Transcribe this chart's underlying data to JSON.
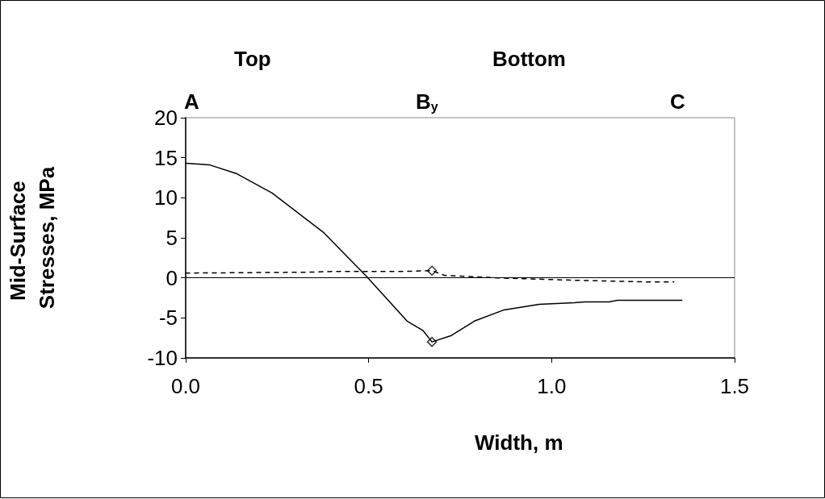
{
  "chart_data": {
    "type": "line",
    "xlabel": "Width, m",
    "ylabel": "Mid-Surface Stresses, MPa",
    "annotations": [
      "Top",
      "Bottom",
      "A",
      "B$_{y}$",
      "C"
    ],
    "series": [
      {
        "color": "#000000",
        "line_style": "solid",
        "marker": "none",
        "x": [
          0,
          0.066,
          0.14,
          0.236,
          0.376,
          0.494,
          0.605,
          0.649,
          0.673,
          0.726,
          0.789,
          0.87,
          0.966,
          1.062,
          1.091,
          1.157,
          1.18,
          1.356
        ],
        "values": [
          14.3,
          14.1,
          13.0,
          10.6,
          5.7,
          0.2,
          -5.4,
          -6.6,
          -8.0,
          -7.2,
          -5.4,
          -4.0,
          -3.3,
          -3.1,
          -3.0,
          -3.0,
          -2.8,
          -2.8
        ]
      },
      {
        "color": "#000000",
        "line_style": "dashed",
        "marker": "none",
        "x": [
          0,
          0.324,
          0.41,
          0.59,
          0.673,
          0.708,
          0.848,
          1.062,
          1.257,
          1.334
        ],
        "values": [
          0.6,
          0.7,
          0.8,
          0.8,
          0.9,
          0.3,
          0.0,
          -0.3,
          -0.5,
          -0.5
        ]
      },
      {
        "type": "scatter",
        "color": "#000000",
        "marker": "diamond",
        "x": [
          0.673,
          0.673
        ],
        "values": [
          -8.0,
          0.9
        ]
      }
    ],
    "xlim": [
      0,
      1.5
    ],
    "xticks": [
      {
        "value": 0,
        "label": "0.0"
      },
      {
        "value": 0.5,
        "label": "0.5"
      },
      {
        "value": 1,
        "label": "1.0"
      },
      {
        "value": 1.5,
        "label": "1.5"
      }
    ],
    "ylim": [
      -10,
      20
    ],
    "yticks": [
      -10,
      -5,
      0,
      5,
      10,
      15,
      20
    ],
    "ref_lines": [
      {
        "axis": "y",
        "value": 0,
        "color": "#000000"
      }
    ],
    "grid": false
  }
}
